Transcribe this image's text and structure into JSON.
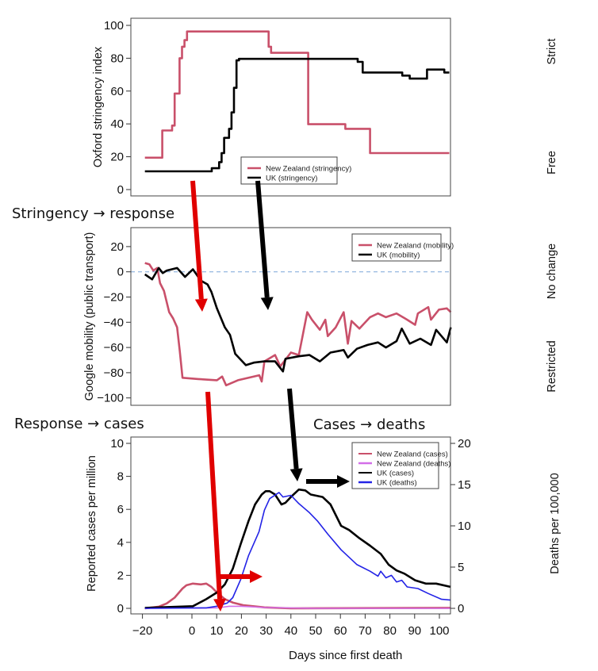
{
  "chart_data": [
    {
      "type": "line",
      "ylabel": "Oxford stringency index",
      "ylim": [
        0,
        100
      ],
      "yticks": [
        0,
        20,
        40,
        60,
        80,
        100
      ],
      "right_labels": {
        "top": "Strict",
        "bottom": "Free"
      },
      "legend": {
        "position": "bottom-center",
        "entries": [
          "New Zealand (stringency)",
          "UK (stringency)"
        ]
      },
      "series": [
        {
          "name": "New Zealand (stringency)",
          "color": "#c9506a",
          "step": true,
          "x": [
            -19,
            -12,
            -8,
            -7,
            -5,
            -4,
            -3,
            -2,
            31,
            32,
            47,
            62,
            72,
            104
          ],
          "y": [
            19.4,
            36,
            39,
            58.5,
            80,
            87,
            91,
            96.3,
            87,
            83.3,
            39.8,
            37,
            22.2,
            22.2
          ]
        },
        {
          "name": "UK (stringency)",
          "color": "#000000",
          "step": true,
          "x": [
            -19,
            8,
            11,
            12,
            13,
            15,
            16,
            17,
            18,
            19,
            67,
            69,
            85,
            88,
            95,
            102,
            104
          ],
          "y": [
            11.1,
            13,
            16.7,
            22.2,
            31.5,
            37,
            47,
            62,
            78.7,
            79.6,
            77.8,
            71.3,
            69.4,
            67.6,
            73.1,
            71.3,
            71.3
          ]
        }
      ]
    },
    {
      "type": "line",
      "ylabel": "Google mobility (public transport)",
      "ylim": [
        -100,
        20
      ],
      "yticks": [
        -100,
        -80,
        -60,
        -40,
        -20,
        0,
        20
      ],
      "reference_line": {
        "y": 0,
        "style": "dashed",
        "color": "#7aa6d8"
      },
      "right_labels": {
        "top": "No change",
        "bottom": "Restricted"
      },
      "legend": {
        "position": "top-right",
        "entries": [
          "New Zealand (mobility)",
          "UK (mobility)"
        ]
      },
      "series": [
        {
          "name": "New Zealand (mobility)",
          "color": "#c9506a",
          "x": [
            -19,
            -17.2,
            -15.6,
            -14,
            -12.9,
            -11.3,
            -9.2,
            -7.6,
            -6,
            -4.9,
            -3.8,
            2.6,
            10.1,
            12.2,
            13.8,
            18.6,
            27.2,
            28.2,
            29.3,
            33.6,
            35.7,
            40,
            43.2,
            44.8,
            46.6,
            48.5,
            51.7,
            53.9,
            54.9,
            58.1,
            61.3,
            63,
            64.5,
            67.7,
            72,
            75.2,
            78.4,
            82.7,
            87,
            90.2,
            91.3,
            95.5,
            96.6,
            99.8,
            103,
            104.6
          ],
          "y": [
            7,
            6,
            1,
            3,
            -9,
            -15,
            -32,
            -37,
            -44,
            -63,
            -84,
            -85,
            -86,
            -83,
            -90,
            -86,
            -82,
            -87,
            -71,
            -66,
            -75,
            -64,
            -66,
            -50,
            -32,
            -38,
            -46,
            -38,
            -51,
            -44,
            -32,
            -57,
            -39,
            -45,
            -36,
            -33,
            -36,
            -33,
            -38,
            -42,
            -33,
            -28,
            -38,
            -30,
            -29,
            -32
          ]
        },
        {
          "name": "UK (mobility)",
          "color": "#000000",
          "x": [
            -19,
            -16.1,
            -13.4,
            -11.8,
            -10.2,
            -6,
            -2.8,
            0.4,
            3.6,
            6.3,
            7.9,
            10.1,
            13.3,
            15.4,
            17.5,
            21.8,
            25,
            29.3,
            33.6,
            36.8,
            37.8,
            43.2,
            47.5,
            51.7,
            56,
            61.3,
            63,
            66.7,
            71,
            75.2,
            78.4,
            82.7,
            84.8,
            88,
            92.3,
            96.6,
            98.7,
            103,
            104.6
          ],
          "y": [
            -2,
            -6,
            3,
            -1,
            1,
            3,
            -4,
            2,
            -7,
            -10,
            -16,
            -29,
            -44,
            -50,
            -65,
            -74,
            -72,
            -71,
            -71,
            -79,
            -69,
            -67,
            -66,
            -71,
            -64,
            -62,
            -68,
            -61,
            -58,
            -56,
            -60,
            -55,
            -45,
            -57,
            -53,
            -58,
            -46,
            -56,
            -44
          ]
        }
      ]
    },
    {
      "type": "line",
      "xlabel": "Days since first death",
      "ylabel": "Reported cases per million",
      "y2label": "Deaths per 100,000",
      "xlim": [
        -24.7,
        104.5
      ],
      "xticks": [
        -20,
        -10,
        0,
        10,
        20,
        30,
        40,
        50,
        60,
        70,
        80,
        90,
        100
      ],
      "xtick_labels": [
        "−20",
        "",
        "0",
        "10",
        "20",
        "30",
        "40",
        "50",
        "60",
        "70",
        "80",
        "90",
        "100"
      ],
      "ylim": [
        0,
        10
      ],
      "yticks": [
        0,
        2,
        4,
        6,
        8,
        10
      ],
      "y2lim": [
        0,
        20
      ],
      "y2ticks": [
        0,
        5,
        10,
        15,
        20
      ],
      "legend": {
        "position": "top-right",
        "entries": [
          "New Zealand (cases)",
          "New Zealand (deaths)",
          "UK (cases)",
          "UK (deaths)"
        ]
      },
      "series": [
        {
          "name": "New Zealand (cases)",
          "color": "#c9506a",
          "axis": "left",
          "x": [
            -19,
            -13.4,
            -10.2,
            -7,
            -3.8,
            -2.2,
            0.4,
            3.6,
            5.8,
            7.9,
            10.1,
            13.3,
            16.5,
            20.7,
            29.3,
            40,
            104.6
          ],
          "y": [
            0,
            0.1,
            0.3,
            0.65,
            1.2,
            1.4,
            1.5,
            1.45,
            1.5,
            1.3,
            0.96,
            0.56,
            0.35,
            0.19,
            0.06,
            0,
            0.03
          ]
        },
        {
          "name": "New Zealand (deaths)",
          "color": "#d36ee8",
          "axis": "right",
          "x": [
            -19,
            10,
            15,
            20,
            30,
            50,
            104.6
          ],
          "y": [
            0,
            0.05,
            0.25,
            0.25,
            0.1,
            0,
            0
          ]
        },
        {
          "name": "UK (cases)",
          "color": "#000000",
          "axis": "left",
          "x": [
            -19,
            0.4,
            5.8,
            10.1,
            13.3,
            16.5,
            19.7,
            22.9,
            25.5,
            28.2,
            29.8,
            31.4,
            33.6,
            36.2,
            37.8,
            40,
            43.2,
            45.8,
            48,
            52.8,
            56,
            60.3,
            63.5,
            67.7,
            72,
            76.3,
            79.5,
            82.7,
            85.9,
            90.2,
            94.5,
            98.7,
            104.6
          ],
          "y": [
            0.03,
            0.13,
            0.56,
            0.96,
            1.45,
            2.4,
            3.9,
            5.3,
            6.3,
            6.9,
            7.1,
            7.1,
            6.9,
            6.3,
            6.4,
            6.75,
            7.2,
            7.15,
            6.9,
            6.75,
            6.3,
            5.0,
            4.75,
            4.25,
            3.8,
            3.3,
            2.65,
            2.3,
            2.1,
            1.7,
            1.5,
            1.5,
            1.3
          ]
        },
        {
          "name": "UK (deaths)",
          "color": "#2323e6",
          "axis": "right",
          "x": [
            -19,
            5.8,
            10.1,
            14.3,
            16.5,
            19.7,
            22.9,
            27.1,
            29.3,
            31.4,
            35.2,
            36.8,
            40,
            43.2,
            47.5,
            50.7,
            54.9,
            60.3,
            66.7,
            72,
            75.2,
            76.3,
            78.4,
            80.6,
            82.7,
            84.8,
            87,
            91.3,
            95.5,
            100.9,
            104.6
          ],
          "y": [
            0,
            0.06,
            0.26,
            0.64,
            1.3,
            3.5,
            6.4,
            9.3,
            11.9,
            13.3,
            14.05,
            13.5,
            13.7,
            12.7,
            11.6,
            10.6,
            9.0,
            7.1,
            5.3,
            4.5,
            3.9,
            4.5,
            3.7,
            4.0,
            3.2,
            3.4,
            2.6,
            2.4,
            1.8,
            1.1,
            1.0
          ]
        }
      ]
    }
  ],
  "annotations": {
    "stringency_response": "Stringency → response",
    "response_cases": "Response → cases",
    "cases_deaths": "Cases → deaths",
    "arrow_colors": {
      "new_zealand": "#e00000",
      "uk": "#000000"
    }
  }
}
